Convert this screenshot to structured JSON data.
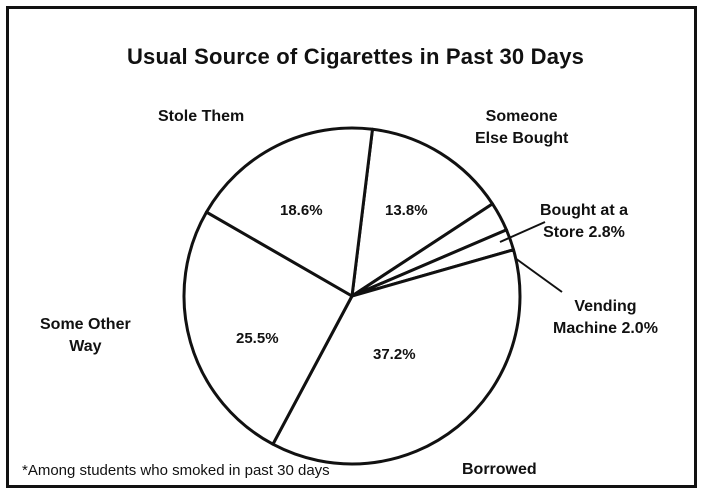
{
  "chart_data": {
    "type": "pie",
    "title": "Usual Source of Cigarettes in Past 30 Days",
    "slices": [
      {
        "name": "Someone Else Bought",
        "label_lines": [
          "Someone",
          "Else Bought"
        ],
        "value": 13.8,
        "value_label": "13.8%"
      },
      {
        "name": "Bought at a Store",
        "label_lines": [
          "Bought at a",
          "Store 2.8%"
        ],
        "value": 2.8,
        "value_label": ""
      },
      {
        "name": "Vending Machine",
        "label_lines": [
          "Vending",
          "Machine 2.0%"
        ],
        "value": 2.0,
        "value_label": ""
      },
      {
        "name": "Borrowed",
        "label_lines": [
          "Borrowed"
        ],
        "value": 37.2,
        "value_label": "37.2%"
      },
      {
        "name": "Some Other Way",
        "label_lines": [
          "Some Other",
          "Way"
        ],
        "value": 25.5,
        "value_label": "25.5%"
      },
      {
        "name": "Stole Them",
        "label_lines": [
          "Stole Them"
        ],
        "value": 18.6,
        "value_label": "18.6%"
      }
    ],
    "footnote": "*Among students who smoked in past 30 days"
  },
  "colors": {
    "stroke": "#111111",
    "fill": "#ffffff"
  }
}
